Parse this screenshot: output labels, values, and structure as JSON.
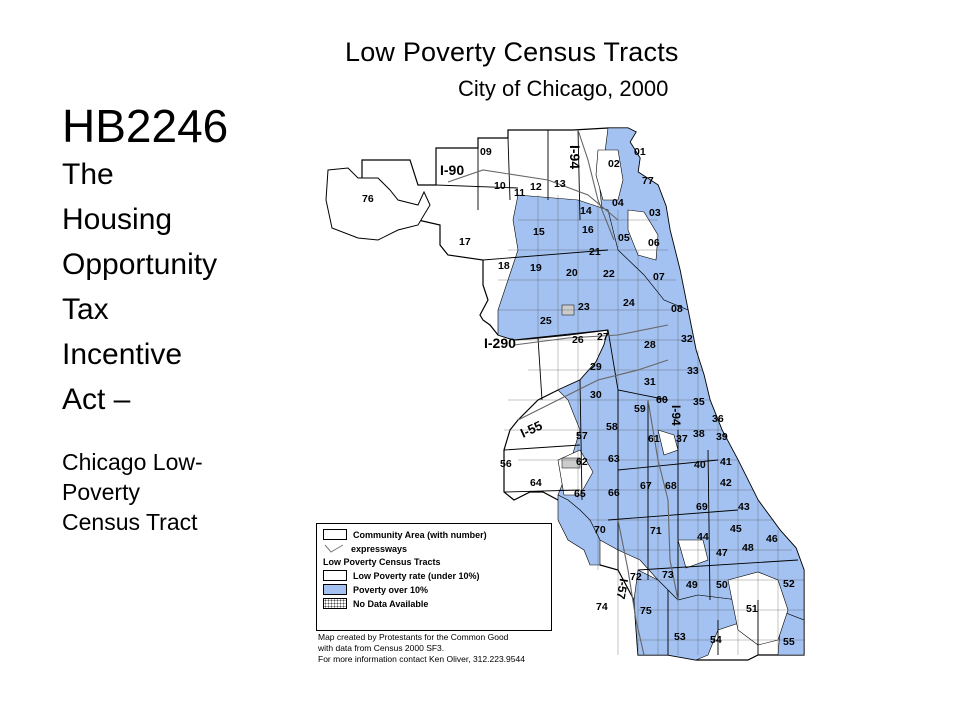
{
  "slide": {
    "heading": "HB2246",
    "title_lines": [
      "The",
      "Housing",
      "Opportunity",
      "Tax",
      "Incentive",
      "Act –"
    ],
    "sub_lines": [
      "Chicago Low-",
      "Poverty",
      "Census Tract"
    ]
  },
  "map": {
    "title": "Low Poverty Census Tracts",
    "subtitle": "City of Chicago, 2000",
    "highways": [
      "I-94",
      "I-90",
      "I-290",
      "I-55",
      "I-57",
      "I-94"
    ],
    "community_areas": [
      "01",
      "02",
      "03",
      "04",
      "05",
      "06",
      "07",
      "08",
      "09",
      "10",
      "11",
      "12",
      "13",
      "14",
      "15",
      "16",
      "17",
      "18",
      "19",
      "20",
      "21",
      "22",
      "23",
      "24",
      "25",
      "26",
      "27",
      "28",
      "29",
      "30",
      "31",
      "32",
      "33",
      "35",
      "36",
      "37",
      "38",
      "39",
      "40",
      "41",
      "42",
      "43",
      "44",
      "45",
      "46",
      "47",
      "48",
      "49",
      "50",
      "51",
      "52",
      "53",
      "54",
      "55",
      "56",
      "57",
      "58",
      "59",
      "60",
      "61",
      "62",
      "63",
      "64",
      "65",
      "66",
      "67",
      "68",
      "69",
      "70",
      "71",
      "72",
      "73",
      "74",
      "75",
      "76",
      "77"
    ],
    "colors": {
      "poverty": "#a4c2f1",
      "low_poverty": "#ffffff",
      "border": "#000000"
    }
  },
  "legend": {
    "community_area": "Community Area (with number)",
    "expressways": "expressways",
    "section_title": "Low Poverty Census Tracts",
    "low_poverty": "Low Poverty rate (under 10%)",
    "poverty": "Poverty over 10%",
    "no_data": "No Data Available"
  },
  "credit": [
    "Map created by Protestants for the Common Good",
    "with data from Census 2000 SF3.",
    "For more information contact Ken Oliver, 312.223.9544"
  ]
}
